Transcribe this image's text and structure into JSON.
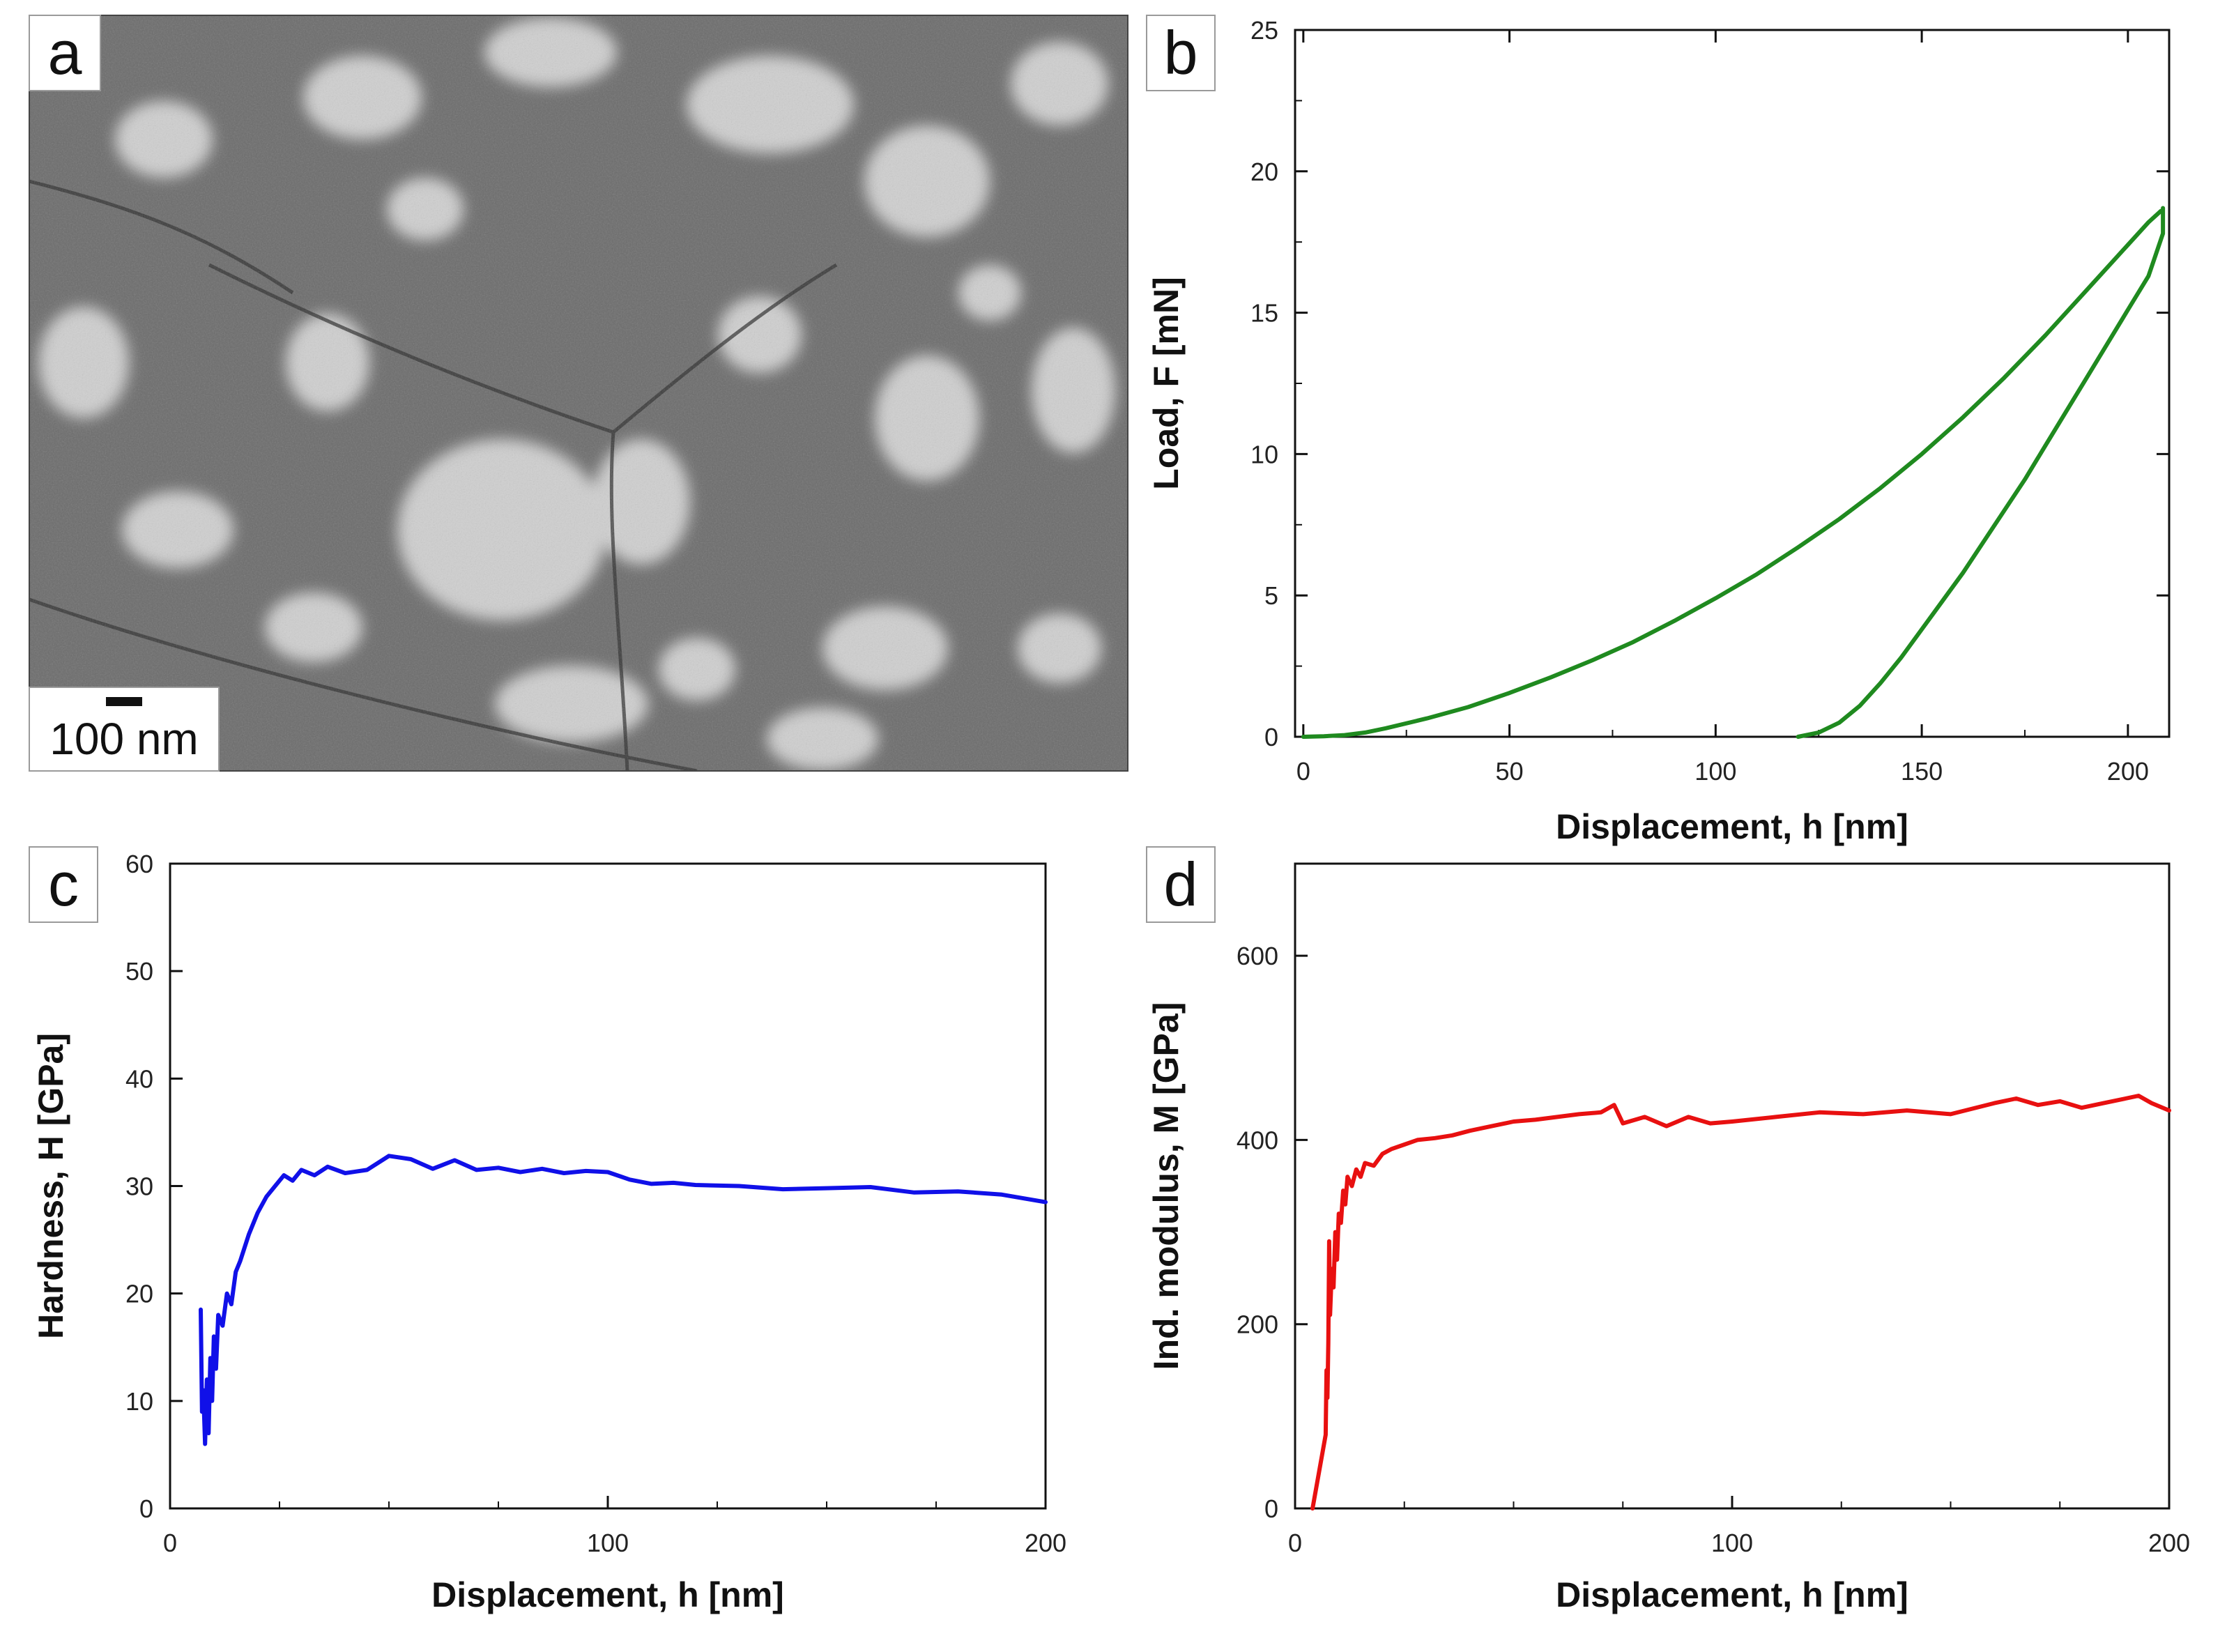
{
  "panels": {
    "a": {
      "letter": "a",
      "scale_bar_label": "100 nm",
      "image_description_name": "microstructure-micrograph"
    },
    "b": {
      "letter": "b"
    },
    "c": {
      "letter": "c"
    },
    "d": {
      "letter": "d"
    }
  },
  "chart_data": [
    {
      "id": "b",
      "type": "line",
      "xlabel": "Displacement, h [nm]",
      "ylabel": "Load, F [mN]",
      "xlim": [
        -2,
        210
      ],
      "ylim": [
        0,
        25
      ],
      "xticks": [
        0,
        50,
        100,
        150,
        200
      ],
      "yticks": [
        0,
        5,
        10,
        15,
        20,
        25
      ],
      "color": "#1f8a1f",
      "series": [
        {
          "name": "loading",
          "x": [
            0,
            5,
            10,
            15,
            20,
            30,
            40,
            50,
            60,
            70,
            80,
            90,
            100,
            110,
            120,
            130,
            140,
            150,
            160,
            170,
            180,
            190,
            200,
            205,
            208
          ],
          "y": [
            0,
            0.02,
            0.06,
            0.15,
            0.3,
            0.65,
            1.05,
            1.55,
            2.1,
            2.7,
            3.35,
            4.1,
            4.9,
            5.75,
            6.7,
            7.7,
            8.8,
            10.0,
            11.3,
            12.7,
            14.2,
            15.8,
            17.4,
            18.2,
            18.6
          ]
        },
        {
          "name": "unloading",
          "x": [
            208.5,
            208.5,
            205,
            200,
            195,
            190,
            185,
            180,
            175,
            170,
            165,
            160,
            155,
            150,
            145,
            140,
            135,
            130,
            125,
            120
          ],
          "y": [
            18.7,
            17.8,
            16.3,
            15.1,
            13.9,
            12.7,
            11.5,
            10.3,
            9.1,
            8.0,
            6.9,
            5.8,
            4.8,
            3.8,
            2.8,
            1.9,
            1.1,
            0.5,
            0.15,
            0
          ]
        }
      ]
    },
    {
      "id": "c",
      "type": "line",
      "xlabel": "Displacement, h [nm]",
      "ylabel": "Hardness, H [GPa]",
      "xlim": [
        0,
        200
      ],
      "ylim": [
        0,
        60
      ],
      "xticks": [
        0,
        100,
        200
      ],
      "yticks": [
        0,
        10,
        20,
        30,
        40,
        50,
        60
      ],
      "color": "#1010e8",
      "series": [
        {
          "name": "hardness",
          "x": [
            7,
            7.3,
            7.6,
            8,
            8.4,
            8.8,
            9.2,
            9.6,
            10,
            10.5,
            11,
            12,
            13,
            14,
            15,
            16,
            18,
            20,
            22,
            24,
            26,
            28,
            30,
            33,
            36,
            40,
            45,
            50,
            55,
            60,
            65,
            70,
            75,
            80,
            85,
            90,
            95,
            100,
            105,
            110,
            115,
            120,
            130,
            140,
            150,
            160,
            170,
            180,
            190,
            200
          ],
          "y": [
            18.5,
            9,
            11,
            6,
            12,
            7,
            14,
            10,
            16,
            13,
            18,
            17,
            20,
            19,
            22,
            23,
            25.5,
            27.5,
            29,
            30,
            31,
            30.5,
            31.5,
            31,
            31.8,
            31.2,
            31.5,
            32.8,
            32.5,
            31.6,
            32.4,
            31.5,
            31.7,
            31.3,
            31.6,
            31.2,
            31.4,
            31.3,
            30.6,
            30.2,
            30.3,
            30.1,
            30,
            29.7,
            29.8,
            29.9,
            29.4,
            29.5,
            29.2,
            28.5
          ]
        }
      ]
    },
    {
      "id": "d",
      "type": "line",
      "xlabel": "Displacement, h [nm]",
      "ylabel": "Ind. modulus, M [GPa]",
      "xlim": [
        0,
        200
      ],
      "ylim": [
        0,
        700
      ],
      "xticks": [
        0,
        100,
        200
      ],
      "yticks": [
        0,
        200,
        400,
        600
      ],
      "color": "#e81010",
      "series": [
        {
          "name": "modulus",
          "x": [
            4,
            5.5,
            7,
            7.2,
            7.4,
            7.6,
            7.8,
            8,
            8.4,
            8.8,
            9.2,
            9.6,
            10,
            10.5,
            11,
            11.5,
            12,
            13,
            14,
            15,
            16,
            18,
            20,
            22,
            25,
            28,
            32,
            36,
            40,
            45,
            50,
            55,
            60,
            65,
            70,
            73,
            75,
            80,
            85,
            90,
            95,
            100,
            110,
            120,
            130,
            140,
            150,
            160,
            165,
            170,
            175,
            180,
            185,
            190,
            193,
            196,
            200
          ],
          "y": [
            0,
            40,
            80,
            150,
            120,
            180,
            290,
            210,
            260,
            240,
            300,
            270,
            320,
            310,
            345,
            330,
            360,
            350,
            368,
            360,
            375,
            372,
            385,
            390,
            395,
            400,
            402,
            405,
            410,
            415,
            420,
            422,
            425,
            428,
            430,
            438,
            418,
            425,
            415,
            425,
            418,
            420,
            425,
            430,
            428,
            432,
            428,
            440,
            445,
            438,
            442,
            435,
            440,
            445,
            448,
            440,
            432
          ]
        }
      ]
    }
  ]
}
